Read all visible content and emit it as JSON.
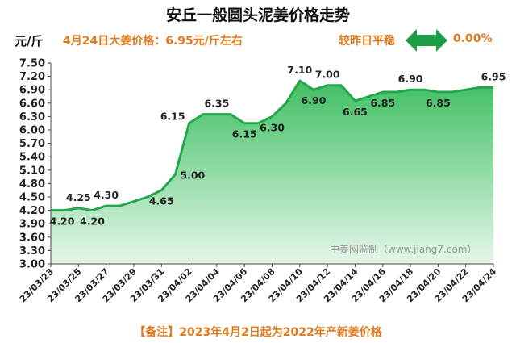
{
  "header": {
    "title": "安丘一般圆头泥姜价格走势",
    "unit": "元/斤",
    "price_note": "4月24日大姜价格：6.95元/斤左右",
    "compare_label": "较昨日平稳",
    "compare_value": "0.00%",
    "compare_icon": "double-arrow-icon"
  },
  "watermark": "中姜网监制（www.jiang7.com）",
  "footnote": "【备注】2023年4月2日起为2022年产新姜价格",
  "colors": {
    "line": "#22a84a",
    "fill_top": "#3fbf62",
    "fill_bottom": "#e6f7ea",
    "accent": "#e07a1f",
    "arrow": "#1e9e44"
  },
  "chart_data": {
    "type": "area",
    "title": "安丘一般圆头泥姜价格走势",
    "ylabel": "元/斤",
    "xlabel": "",
    "ylim": [
      3.0,
      7.5
    ],
    "yticks": [
      "3.00",
      "3.30",
      "3.60",
      "3.90",
      "4.20",
      "4.50",
      "4.80",
      "5.10",
      "5.40",
      "5.70",
      "6.00",
      "6.30",
      "6.60",
      "6.90",
      "7.20",
      "7.50"
    ],
    "xticks": [
      "23/03/23",
      "23/03/25",
      "23/03/27",
      "23/03/29",
      "23/03/31",
      "23/04/02",
      "23/04/04",
      "23/04/06",
      "23/04/08",
      "23/04/10",
      "23/04/12",
      "23/04/14",
      "23/04/16",
      "23/04/18",
      "23/04/20",
      "23/04/22",
      "23/04/24"
    ],
    "x": [
      "23/03/23",
      "23/03/24",
      "23/03/25",
      "23/03/26",
      "23/03/27",
      "23/03/28",
      "23/03/29",
      "23/03/30",
      "23/03/31",
      "23/04/01",
      "23/04/02",
      "23/04/03",
      "23/04/04",
      "23/04/05",
      "23/04/06",
      "23/04/07",
      "23/04/08",
      "23/04/09",
      "23/04/10",
      "23/04/11",
      "23/04/12",
      "23/04/13",
      "23/04/14",
      "23/04/15",
      "23/04/16",
      "23/04/17",
      "23/04/18",
      "23/04/19",
      "23/04/20",
      "23/04/21",
      "23/04/22",
      "23/04/23",
      "23/04/24"
    ],
    "values": [
      4.2,
      4.2,
      4.25,
      4.2,
      4.3,
      4.3,
      4.4,
      4.5,
      4.65,
      5.0,
      6.15,
      6.35,
      6.35,
      6.35,
      6.15,
      6.15,
      6.3,
      6.6,
      7.1,
      6.9,
      7.0,
      7.0,
      6.65,
      6.75,
      6.85,
      6.85,
      6.9,
      6.9,
      6.85,
      6.85,
      6.9,
      6.95,
      6.95
    ],
    "data_labels": [
      {
        "index": 0,
        "text": "4.20",
        "pos": "below"
      },
      {
        "index": 2,
        "text": "4.25",
        "pos": "above"
      },
      {
        "index": 3,
        "text": "4.20",
        "pos": "below"
      },
      {
        "index": 4,
        "text": "4.30",
        "pos": "above"
      },
      {
        "index": 8,
        "text": "4.65",
        "pos": "below"
      },
      {
        "index": 9,
        "text": "5.00",
        "pos": "right"
      },
      {
        "index": 10,
        "text": "6.15",
        "pos": "left"
      },
      {
        "index": 12,
        "text": "6.35",
        "pos": "above"
      },
      {
        "index": 14,
        "text": "6.15",
        "pos": "below"
      },
      {
        "index": 16,
        "text": "6.30",
        "pos": "below"
      },
      {
        "index": 18,
        "text": "7.10",
        "pos": "above"
      },
      {
        "index": 19,
        "text": "6.90",
        "pos": "below"
      },
      {
        "index": 20,
        "text": "7.00",
        "pos": "above"
      },
      {
        "index": 22,
        "text": "6.65",
        "pos": "below"
      },
      {
        "index": 24,
        "text": "6.85",
        "pos": "below"
      },
      {
        "index": 26,
        "text": "6.90",
        "pos": "above"
      },
      {
        "index": 28,
        "text": "6.85",
        "pos": "below"
      },
      {
        "index": 32,
        "text": "6.95",
        "pos": "above"
      }
    ],
    "grid": false,
    "legend": "none"
  }
}
